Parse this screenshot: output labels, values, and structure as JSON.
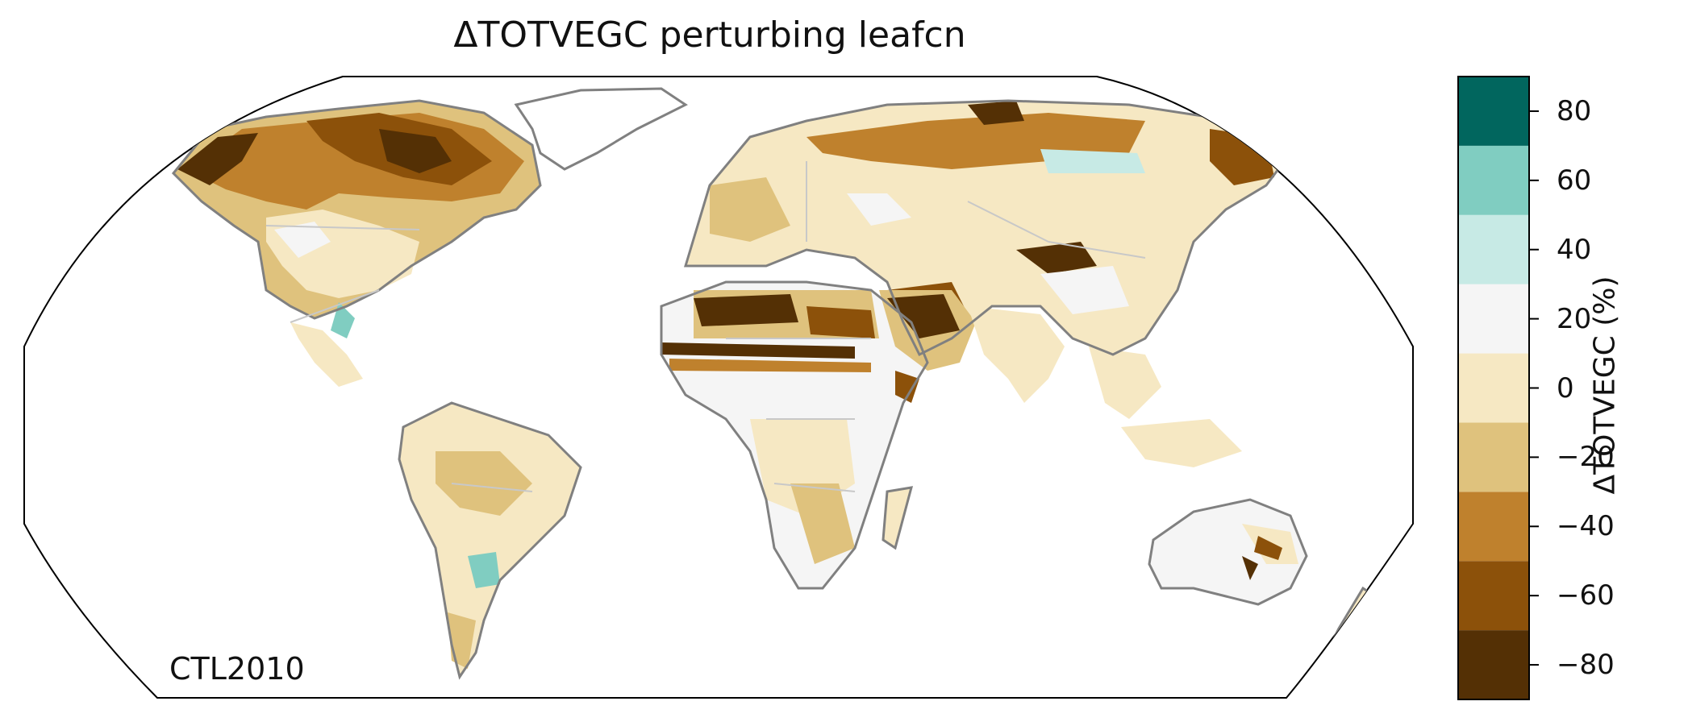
{
  "title": "ΔTOTVEGC perturbing leafcn",
  "run_label": "CTL2010",
  "colorbar": {
    "label": "ΔTOTVEGC (%)",
    "range": [
      -90,
      90
    ],
    "bin_edges": [
      -90,
      -70,
      -50,
      -30,
      -10,
      10,
      30,
      50,
      70,
      90
    ],
    "colors": [
      "#543005",
      "#8c510a",
      "#bf812d",
      "#dfc27d",
      "#f6e8c3",
      "#f5f5f5",
      "#c7eae5",
      "#80cdc1",
      "#35978f",
      "#01665e",
      "#003c30"
    ],
    "ticks": [
      {
        "value": 80,
        "label": "80"
      },
      {
        "value": 60,
        "label": "60"
      },
      {
        "value": 40,
        "label": "40"
      },
      {
        "value": 20,
        "label": "20"
      },
      {
        "value": 0,
        "label": "0"
      },
      {
        "value": -20,
        "label": "−20"
      },
      {
        "value": -40,
        "label": "−40"
      },
      {
        "value": -60,
        "label": "−60"
      },
      {
        "value": -80,
        "label": "−80"
      }
    ]
  },
  "map": {
    "projection": "robinson",
    "coastline_color": "#808080",
    "border_color": "#c8c8c8"
  }
}
